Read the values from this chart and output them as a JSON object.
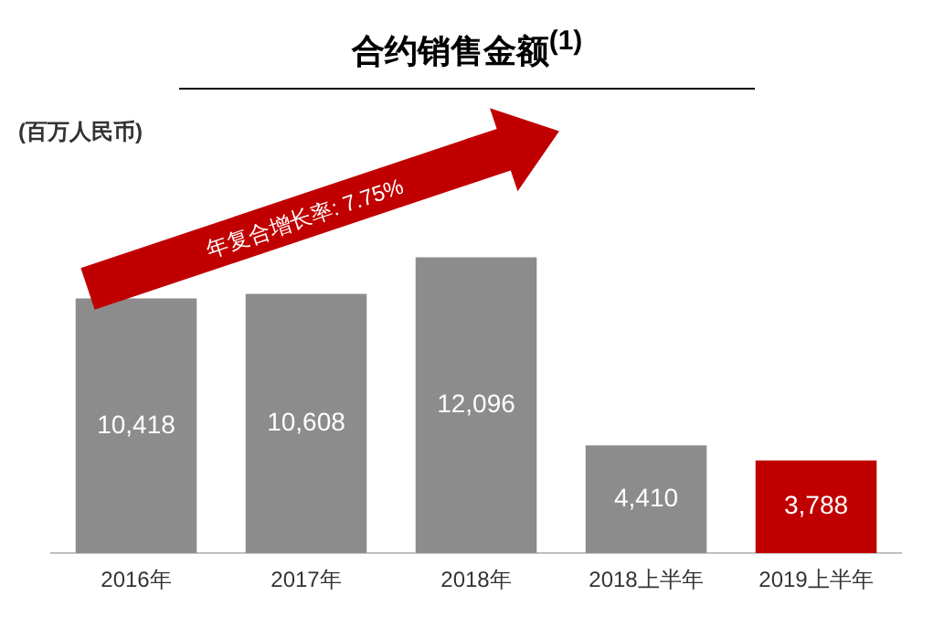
{
  "chart_data": {
    "type": "bar",
    "title": "合约销售金额$^{(1)}$",
    "categories": [
      "2016年",
      "2017年",
      "2018年",
      "2018上半年",
      "2019上半年"
    ],
    "values": [
      10418,
      10608,
      12096,
      4410,
      3788
    ],
    "value_labels": [
      "10,418",
      "10,608",
      "12,096",
      "4,410",
      "3,788"
    ],
    "colors": [
      "#8c8c8c",
      "#8c8c8c",
      "#8c8c8c",
      "#8c8c8c",
      "#c00000"
    ],
    "grid": false,
    "annotations": [
      "(百万人民币)",
      "年复合增长率: 7.75%"
    ]
  }
}
